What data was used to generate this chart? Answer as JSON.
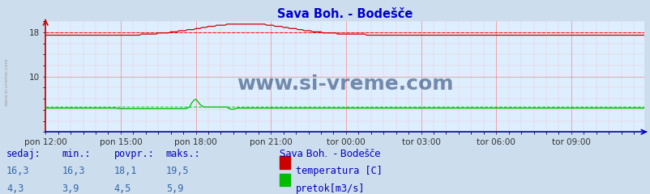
{
  "title": "Sava Boh. - Bodešče",
  "title_color": "#0000cc",
  "bg_color": "#ccdded",
  "plot_bg_color": "#ddeeff",
  "grid_color_major": "#ff9999",
  "grid_color_minor": "#ffcccc",
  "x_tick_labels": [
    "pon 12:00",
    "pon 15:00",
    "pon 18:00",
    "pon 21:00",
    "tor 00:00",
    "tor 03:00",
    "tor 06:00",
    "tor 09:00"
  ],
  "x_tick_positions": [
    0,
    36,
    72,
    108,
    144,
    180,
    216,
    252
  ],
  "n_points": 288,
  "temp_color": "#cc0000",
  "temp_avg_color": "#ff0000",
  "flow_color": "#00bb00",
  "flow_avg_color": "#00cc00",
  "watermark": "www.si-vreme.com",
  "watermark_color": "#1a3a6a",
  "watermark_fontsize": 18,
  "ymin": 0,
  "ymax": 20,
  "ytick_vals": [
    10,
    18
  ],
  "legend_title": "Sava Boh.  - Bodešče",
  "footer_labels": [
    "sedaj:",
    "min.:",
    "povpr.:",
    "maks.:"
  ],
  "footer_temp": [
    "16,3",
    "16,3",
    "18,1",
    "19,5"
  ],
  "footer_flow": [
    "4,3",
    "3,9",
    "4,5",
    "5,9"
  ],
  "footer_color": "#0000bb",
  "footer_value_color": "#3366aa",
  "avg_temp": 18.1,
  "avg_flow": 4.5,
  "temp_hline": 18.0,
  "flow_hline": 4.5
}
